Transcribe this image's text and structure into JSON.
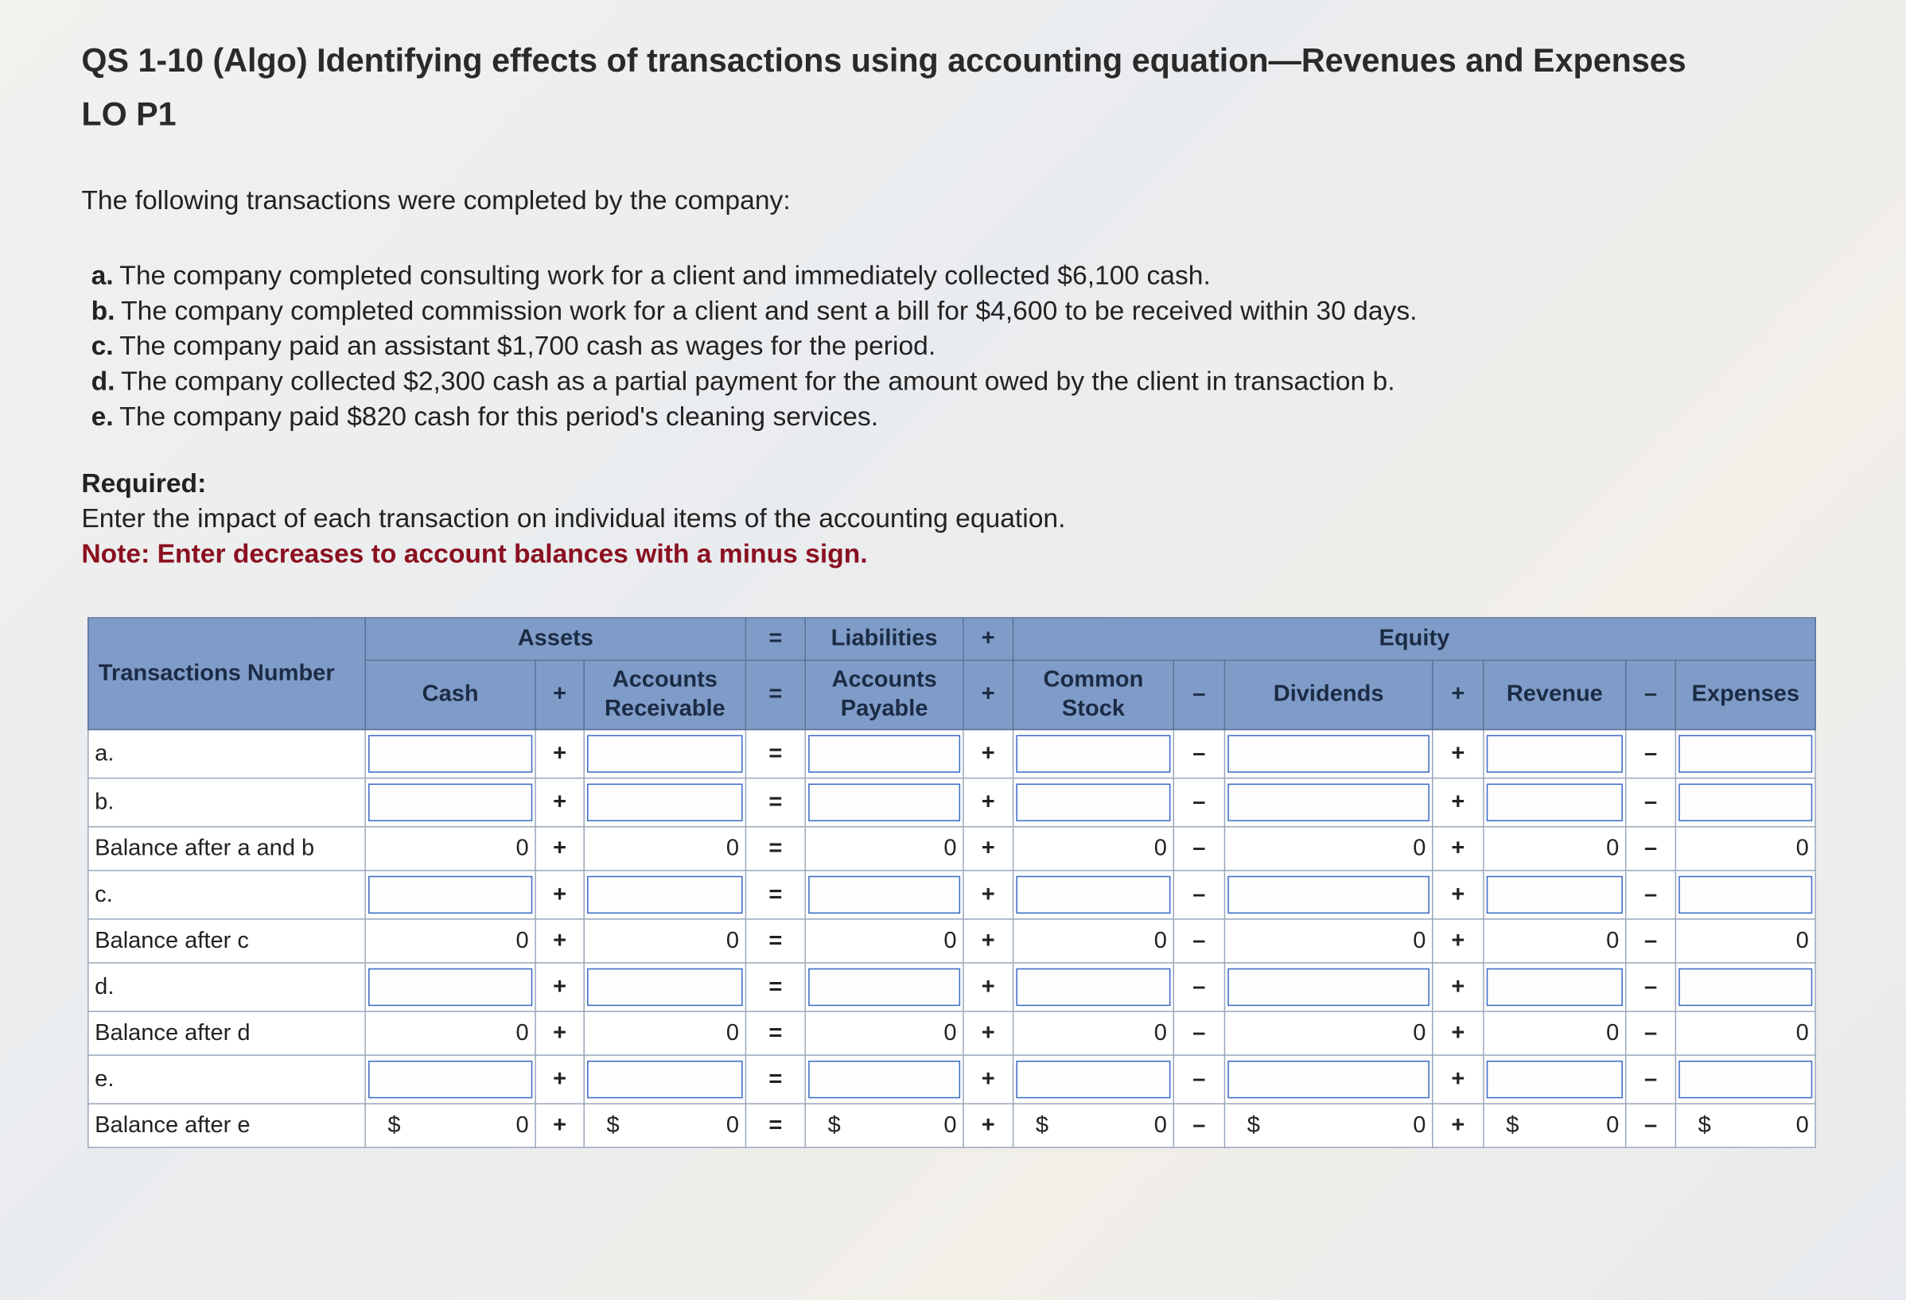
{
  "header": {
    "title": "QS 1-10 (Algo) Identifying effects of transactions using accounting equation—Revenues and Expenses",
    "subtitle": "LO P1"
  },
  "intro": "The following transactions were completed by the company:",
  "transactions": [
    {
      "letter": "a.",
      "text": "The company completed consulting work for a client and immediately collected $6,100 cash."
    },
    {
      "letter": "b.",
      "text": "The company completed commission work for a client and sent a bill for $4,600 to be received within 30 days."
    },
    {
      "letter": "c.",
      "text": "The company paid an assistant $1,700 cash as wages for the period."
    },
    {
      "letter": "d.",
      "text": "The company collected $2,300 cash as a partial payment for the amount owed by the client in transaction b."
    },
    {
      "letter": "e.",
      "text": "The company paid $820 cash for this period's cleaning services."
    }
  ],
  "required": {
    "heading": "Required:",
    "text": "Enter the impact of each transaction on individual items of the accounting equation.",
    "note": "Note: Enter decreases to account balances with a minus sign."
  },
  "table": {
    "groups": {
      "assets": "Assets",
      "equals": "=",
      "liabilities": "Liabilities",
      "plus": "+",
      "equity": "Equity"
    },
    "row_header": "Transactions Number",
    "columns": [
      "Cash",
      "+",
      "Accounts Receivable",
      "=",
      "Accounts Payable",
      "+",
      "Common Stock",
      "–",
      "Dividends",
      "+",
      "Revenue",
      "–",
      "Expenses"
    ],
    "rows": [
      {
        "label": "a."
      },
      {
        "label": "b."
      },
      {
        "label": "Balance after a and b",
        "values": [
          0,
          0,
          0,
          0,
          0,
          0,
          0
        ]
      },
      {
        "label": "c."
      },
      {
        "label": "Balance after c",
        "values": [
          0,
          0,
          0,
          0,
          0,
          0,
          0
        ]
      },
      {
        "label": "d."
      },
      {
        "label": "Balance after d",
        "values": [
          0,
          0,
          0,
          0,
          0,
          0,
          0
        ]
      },
      {
        "label": "e."
      },
      {
        "label": "Balance after e",
        "values": [
          0,
          0,
          0,
          0,
          0,
          0,
          0
        ],
        "currency": "$"
      }
    ]
  }
}
